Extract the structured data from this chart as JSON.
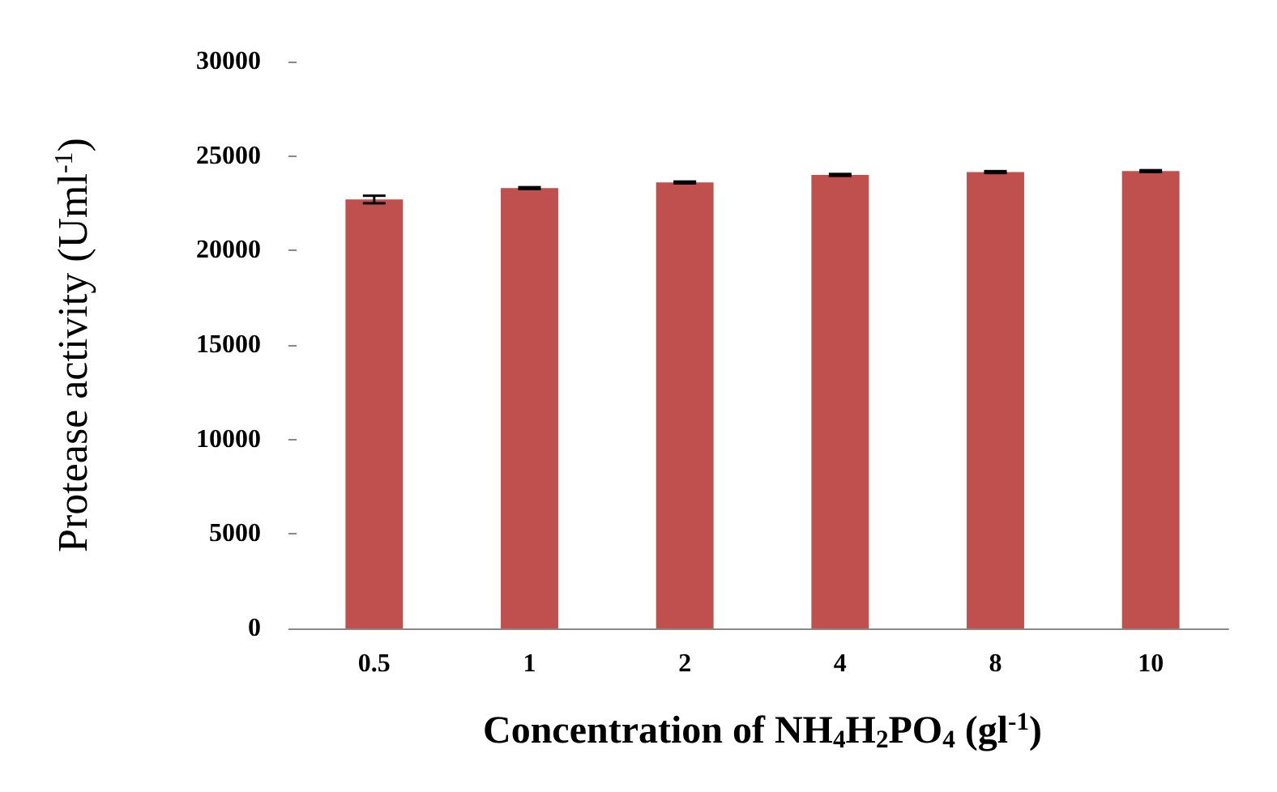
{
  "chart_data": {
    "type": "bar",
    "xlabel": "Concentration of NH$_{4}$H$_{2}$PO$_{4}$ (gl$^{-1}$)",
    "ylabel": "Protease activity (Uml$^{-1}$)",
    "categories": [
      "0.5",
      "1",
      "2",
      "4",
      "8",
      "10"
    ],
    "values": [
      22700,
      23300,
      23600,
      24000,
      24150,
      24200
    ],
    "errors": [
      200,
      50,
      50,
      50,
      50,
      50
    ],
    "color": "#c0504d",
    "ylim": [
      0,
      30000
    ],
    "yticks": [
      0,
      5000,
      10000,
      15000,
      20000,
      25000,
      30000
    ],
    "grid": false
  }
}
